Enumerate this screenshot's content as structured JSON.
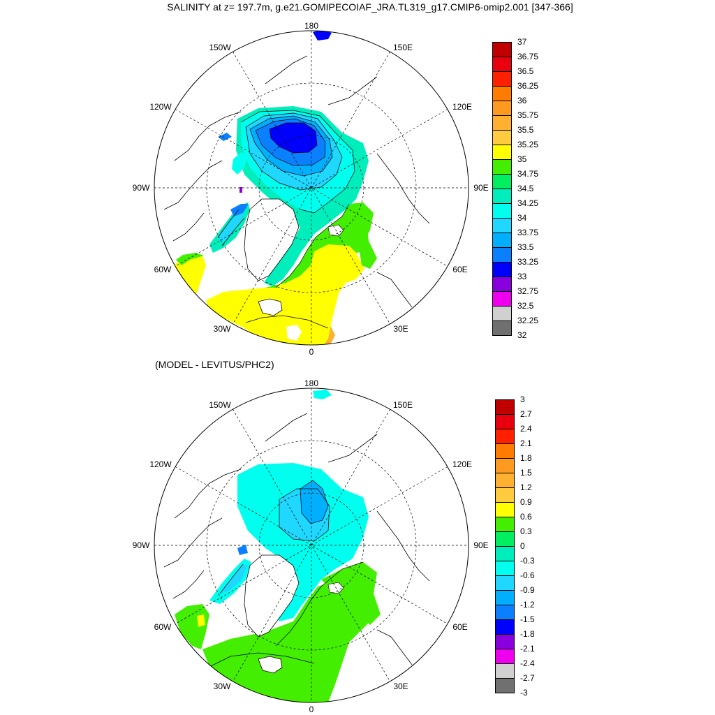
{
  "title": "SALINITY at z= 197.7m, g.e21.GOMIPECOIAF_JRA.TL319_g17.CMIP6-omip2.001 [347-366]",
  "subtitle": "(MODEL - LEVITUS/PHC2)",
  "longitude_labels": [
    "180",
    "150E",
    "120E",
    "90E",
    "60E",
    "30E",
    "0",
    "30W",
    "60W",
    "90W",
    "120W",
    "150W"
  ],
  "colorbar_top": {
    "labels": [
      "37",
      "36.75",
      "36.5",
      "36.25",
      "36",
      "35.75",
      "35.5",
      "35.25",
      "35",
      "34.75",
      "34.5",
      "34.25",
      "34",
      "33.75",
      "33.5",
      "33.25",
      "33",
      "32.75",
      "32.5",
      "32.25",
      "32"
    ],
    "colors": [
      "#c00000",
      "#e8000e",
      "#ff2000",
      "#ff7c00",
      "#ff9a20",
      "#ffb030",
      "#ffcc40",
      "#ffff00",
      "#44ee00",
      "#00ee60",
      "#00eebb",
      "#00ffee",
      "#20d8ff",
      "#00b0ff",
      "#0a80ff",
      "#0000ff",
      "#8800dd",
      "#ee00ee",
      "#d0d0d0",
      "#707070"
    ]
  },
  "colorbar_bottom": {
    "labels": [
      "3",
      "2.7",
      "2.4",
      "2.1",
      "1.8",
      "1.5",
      "1.2",
      "0.9",
      "0.6",
      "0.3",
      "0",
      "-0.3",
      "-0.6",
      "-0.9",
      "-1.2",
      "-1.5",
      "-1.8",
      "-2.1",
      "-2.4",
      "-2.7",
      "-3"
    ],
    "colors": [
      "#c00000",
      "#e8000e",
      "#ff2000",
      "#ff7c00",
      "#ff9a20",
      "#ffb030",
      "#ffcc40",
      "#ffff00",
      "#44ee00",
      "#00ee60",
      "#00eebb",
      "#00ffee",
      "#20d8ff",
      "#00b0ff",
      "#0a80ff",
      "#0000ff",
      "#8800dd",
      "#ee00ee",
      "#d0d0d0",
      "#707070"
    ]
  }
}
